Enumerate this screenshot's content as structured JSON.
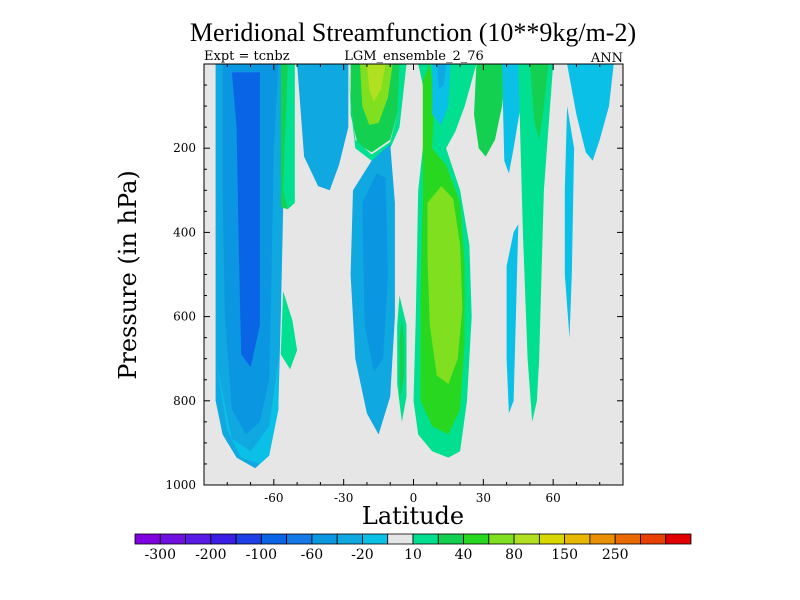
{
  "chart_data": {
    "type": "heatmap",
    "title": "Meridional Streamfunction (10**9kg/m-2)",
    "subtitle_left": "Expt = tcnbz",
    "subtitle_center": "LGM_ensemble_2_76",
    "subtitle_right": "ANN",
    "xlabel": "Latitude",
    "ylabel": "Pressure (in hPa)",
    "xlim": [
      -90,
      90
    ],
    "ylim": [
      1000,
      0
    ],
    "x_ticks": [
      -60,
      -30,
      0,
      30,
      60
    ],
    "x_tick_labels": [
      "-60",
      "-30",
      "0",
      "30",
      "60"
    ],
    "y_ticks": [
      200,
      400,
      600,
      800,
      1000
    ],
    "y_tick_labels": [
      "200",
      "400",
      "600",
      "800",
      "1000"
    ],
    "background_color": "#e6e6e6",
    "colorbar": {
      "colors": [
        "#8000e0",
        "#7010e0",
        "#5a1ae6",
        "#3a1ee6",
        "#1e3ee6",
        "#0a64e6",
        "#1478e6",
        "#0a96e0",
        "#10a8e0",
        "#0ac0e6",
        "#e6e6e6",
        "#00e090",
        "#14d050",
        "#28d820",
        "#80e020",
        "#b0e020",
        "#d8d800",
        "#e8b800",
        "#e89000",
        "#e86a00",
        "#e84000",
        "#e00000"
      ],
      "labels": [
        "-300",
        "-200",
        "-100",
        "-60",
        "-20",
        "10",
        "40",
        "80",
        "150",
        "250"
      ]
    },
    "regions": [
      {
        "name": "southern-cell",
        "level": -30,
        "color": "#10a8e0",
        "polygon": [
          [
            -84,
            0
          ],
          [
            -54,
            0
          ],
          [
            -55,
            150
          ],
          [
            -56,
            350
          ],
          [
            -57,
            600
          ],
          [
            -58,
            800
          ],
          [
            -62,
            930
          ],
          [
            -68,
            960
          ],
          [
            -76,
            935
          ],
          [
            -82,
            880
          ],
          [
            -85,
            800
          ],
          [
            -85,
            0
          ]
        ]
      },
      {
        "name": "southern-cell-core",
        "level": -50,
        "color": "#0a96e0",
        "polygon": [
          [
            -80,
            0
          ],
          [
            -58,
            0
          ],
          [
            -60,
            200
          ],
          [
            -61,
            500
          ],
          [
            -62,
            750
          ],
          [
            -66,
            850
          ],
          [
            -72,
            880
          ],
          [
            -78,
            820
          ],
          [
            -81,
            600
          ],
          [
            -82,
            300
          ],
          [
            -82,
            0
          ]
        ]
      },
      {
        "name": "southern-cell-center",
        "level": -80,
        "color": "#0a64e6",
        "polygon": [
          [
            -78,
            20
          ],
          [
            -66,
            20
          ],
          [
            -66,
            300
          ],
          [
            -66,
            620
          ],
          [
            -70,
            720
          ],
          [
            -74,
            690
          ],
          [
            -75,
            450
          ],
          [
            -76,
            150
          ]
        ]
      },
      {
        "name": "southern-cell-edge",
        "level": -20,
        "color": "#0ac0e6",
        "polygon": [
          [
            -85,
            700
          ],
          [
            -80,
            870
          ],
          [
            -74,
            935
          ],
          [
            -66,
            950
          ],
          [
            -62,
            930
          ],
          [
            -58,
            820
          ],
          [
            -58,
            700
          ],
          [
            -62,
            860
          ],
          [
            -70,
            920
          ],
          [
            -78,
            890
          ]
        ]
      },
      {
        "name": "ferrel-south-positive",
        "level": 20,
        "color": "#14d050",
        "polygon": [
          [
            -57,
            0
          ],
          [
            -53,
            0
          ],
          [
            -52,
            100
          ],
          [
            -52,
            230
          ],
          [
            -51,
            320
          ],
          [
            -54,
            345
          ],
          [
            -57,
            340
          ]
        ]
      },
      {
        "name": "ferrel-south-edge",
        "level": 10,
        "color": "#00e090",
        "polygon": [
          [
            -54,
            0
          ],
          [
            -51,
            0
          ],
          [
            -51,
            200
          ],
          [
            -51,
            330
          ],
          [
            -54,
            345
          ],
          [
            -56,
            300
          ]
        ]
      },
      {
        "name": "blob-south-positive",
        "level": 10,
        "color": "#00e090",
        "polygon": [
          [
            -56,
            540
          ],
          [
            -52,
            610
          ],
          [
            -50,
            680
          ],
          [
            -53,
            725
          ],
          [
            -57,
            690
          ]
        ]
      },
      {
        "name": "upper-blue-mid",
        "level": -20,
        "color": "#10a8e0",
        "polygon": [
          [
            -50,
            0
          ],
          [
            -28,
            0
          ],
          [
            -28,
            150
          ],
          [
            -32,
            240
          ],
          [
            -36,
            300
          ],
          [
            -41,
            290
          ],
          [
            -47,
            220
          ]
        ]
      },
      {
        "name": "upper-tropic-positive",
        "level": 20,
        "color": "#14d050",
        "polygon": [
          [
            -27,
            0
          ],
          [
            -4,
            0
          ],
          [
            -6,
            100
          ],
          [
            -10,
            180
          ],
          [
            -18,
            210
          ],
          [
            -24,
            190
          ],
          [
            -27,
            120
          ]
        ]
      },
      {
        "name": "upper-tropic-core",
        "level": 40,
        "color": "#80e020",
        "polygon": [
          [
            -23,
            0
          ],
          [
            -9,
            0
          ],
          [
            -11,
            80
          ],
          [
            -15,
            140
          ],
          [
            -19,
            145
          ],
          [
            -22,
            100
          ]
        ]
      },
      {
        "name": "upper-tropic-peak",
        "level": 60,
        "color": "#b0e020",
        "polygon": [
          [
            -20,
            0
          ],
          [
            -12,
            0
          ],
          [
            -14,
            60
          ],
          [
            -17,
            90
          ],
          [
            -19,
            60
          ]
        ]
      },
      {
        "name": "upper-tropic-edge",
        "level": 10,
        "color": "#00e090",
        "polygon": [
          [
            -28,
            0
          ],
          [
            -27,
            100
          ],
          [
            -25,
            200
          ],
          [
            -18,
            230
          ],
          [
            -10,
            200
          ],
          [
            -6,
            150
          ],
          [
            -3,
            0
          ],
          [
            -6,
            0
          ],
          [
            -7,
            120
          ],
          [
            -10,
            185
          ],
          [
            -18,
            215
          ],
          [
            -25,
            180
          ],
          [
            -27,
            80
          ]
        ]
      },
      {
        "name": "hadley-south",
        "level": -40,
        "color": "#10a8e0",
        "polygon": [
          [
            -26,
            300
          ],
          [
            -18,
            230
          ],
          [
            -10,
            190
          ],
          [
            -8,
            330
          ],
          [
            -8,
            600
          ],
          [
            -10,
            790
          ],
          [
            -15,
            880
          ],
          [
            -20,
            830
          ],
          [
            -25,
            700
          ],
          [
            -27,
            500
          ]
        ]
      },
      {
        "name": "hadley-south-core",
        "level": -20,
        "color": "#0a96e0",
        "polygon": [
          [
            -22,
            330
          ],
          [
            -16,
            260
          ],
          [
            -12,
            270
          ],
          [
            -11,
            500
          ],
          [
            -13,
            700
          ],
          [
            -17,
            730
          ],
          [
            -21,
            620
          ]
        ]
      },
      {
        "name": "small-equator-blob",
        "level": 10,
        "color": "#00e090",
        "polygon": [
          [
            -6,
            550
          ],
          [
            -3,
            620
          ],
          [
            -3,
            790
          ],
          [
            -5,
            850
          ],
          [
            -7,
            760
          ],
          [
            -7,
            620
          ]
        ]
      },
      {
        "name": "small-equator-core",
        "level": 20,
        "color": "#14d050",
        "polygon": [
          [
            -5,
            600
          ],
          [
            -4,
            660
          ],
          [
            -4,
            740
          ],
          [
            -6,
            800
          ],
          [
            -6,
            660
          ]
        ]
      },
      {
        "name": "hadley-north",
        "level": 20,
        "color": "#00e090",
        "polygon": [
          [
            2,
            0
          ],
          [
            27,
            0
          ],
          [
            22,
            100
          ],
          [
            18,
            160
          ],
          [
            14,
            200
          ],
          [
            20,
            300
          ],
          [
            24,
            430
          ],
          [
            25,
            600
          ],
          [
            23,
            800
          ],
          [
            20,
            920
          ],
          [
            15,
            935
          ],
          [
            8,
            920
          ],
          [
            2,
            880
          ],
          [
            0,
            800
          ],
          [
            1,
            600
          ],
          [
            2,
            300
          ],
          [
            6,
            100
          ]
        ]
      },
      {
        "name": "hadley-north-core",
        "level": 40,
        "color": "#28d820",
        "polygon": [
          [
            4,
            40
          ],
          [
            7,
            0
          ],
          [
            9,
            80
          ],
          [
            8,
            200
          ],
          [
            14,
            240
          ],
          [
            20,
            330
          ],
          [
            22,
            480
          ],
          [
            22,
            660
          ],
          [
            20,
            820
          ],
          [
            15,
            880
          ],
          [
            8,
            860
          ],
          [
            3,
            800
          ],
          [
            3,
            550
          ],
          [
            4,
            300
          ]
        ]
      },
      {
        "name": "hadley-north-peak",
        "level": 60,
        "color": "#80e020",
        "polygon": [
          [
            6,
            330
          ],
          [
            12,
            290
          ],
          [
            17,
            320
          ],
          [
            20,
            430
          ],
          [
            21,
            580
          ],
          [
            19,
            700
          ],
          [
            15,
            760
          ],
          [
            10,
            740
          ],
          [
            7,
            620
          ],
          [
            6,
            460
          ]
        ]
      },
      {
        "name": "north-upper-blue",
        "level": -20,
        "color": "#0ac0e6",
        "polygon": [
          [
            8,
            0
          ],
          [
            16,
            0
          ],
          [
            15,
            100
          ],
          [
            12,
            145
          ],
          [
            8,
            120
          ]
        ]
      },
      {
        "name": "north-upper-blue-core",
        "level": -40,
        "color": "#10a8e0",
        "polygon": [
          [
            10,
            0
          ],
          [
            14,
            0
          ],
          [
            13,
            50
          ],
          [
            11,
            60
          ]
        ]
      },
      {
        "name": "ferrel-north",
        "level": 20,
        "color": "#14d050",
        "polygon": [
          [
            27,
            0
          ],
          [
            40,
            0
          ],
          [
            38,
            100
          ],
          [
            35,
            180
          ],
          [
            31,
            220
          ],
          [
            28,
            200
          ],
          [
            26,
            120
          ]
        ]
      },
      {
        "name": "north-mid-blue",
        "level": -20,
        "color": "#0ac0e6",
        "polygon": [
          [
            38,
            0
          ],
          [
            48,
            0
          ],
          [
            46,
            100
          ],
          [
            43,
            200
          ],
          [
            41,
            260
          ],
          [
            39,
            230
          ]
        ]
      },
      {
        "name": "north-mid-blue-2",
        "level": -20,
        "color": "#0ac0e6",
        "polygon": [
          [
            40,
            480
          ],
          [
            43,
            400
          ],
          [
            45,
            380
          ],
          [
            44,
            600
          ],
          [
            43,
            800
          ],
          [
            41,
            830
          ],
          [
            40,
            700
          ]
        ]
      },
      {
        "name": "polar-north-green",
        "level": 10,
        "color": "#00e090",
        "polygon": [
          [
            45,
            0
          ],
          [
            60,
            0
          ],
          [
            58,
            150
          ],
          [
            56,
            300
          ],
          [
            55,
            500
          ],
          [
            54,
            700
          ],
          [
            53,
            800
          ],
          [
            51,
            850
          ],
          [
            49,
            700
          ],
          [
            47,
            400
          ],
          [
            46,
            200
          ]
        ]
      },
      {
        "name": "polar-north-core",
        "level": 20,
        "color": "#14d050",
        "polygon": [
          [
            50,
            0
          ],
          [
            58,
            0
          ],
          [
            56,
            100
          ],
          [
            54,
            180
          ],
          [
            52,
            140
          ]
        ]
      },
      {
        "name": "polar-far-blue",
        "level": -20,
        "color": "#0ac0e6",
        "polygon": [
          [
            66,
            0
          ],
          [
            86,
            0
          ],
          [
            84,
            100
          ],
          [
            80,
            180
          ],
          [
            77,
            230
          ],
          [
            74,
            210
          ],
          [
            70,
            120
          ]
        ]
      },
      {
        "name": "polar-far-blue-2",
        "level": -20,
        "color": "#0ac0e6",
        "polygon": [
          [
            66,
            100
          ],
          [
            69,
            200
          ],
          [
            68,
            500
          ],
          [
            67,
            650
          ],
          [
            65,
            500
          ],
          [
            65,
            300
          ]
        ]
      }
    ]
  }
}
